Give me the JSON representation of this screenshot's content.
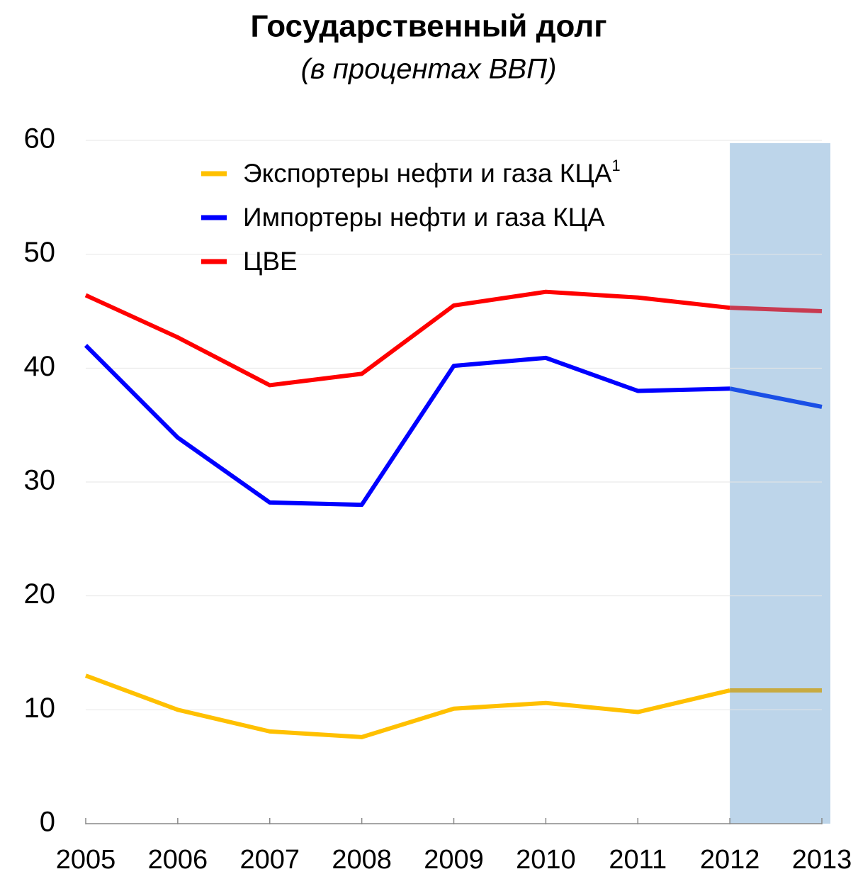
{
  "chart_data": {
    "type": "line",
    "title": "Государственный долг",
    "subtitle": "(в процентах ВВП)",
    "categories": [
      "2005",
      "2006",
      "2007",
      "2008",
      "2009",
      "2010",
      "2011",
      "2012",
      "2013"
    ],
    "series": [
      {
        "name": "Экспортеры нефти и газа КЦА",
        "name_superscript": "1",
        "color": "#ffc000",
        "forecast_color": "#c8aa40",
        "values": [
          13.0,
          10.0,
          8.1,
          7.6,
          10.1,
          10.6,
          9.8,
          11.7,
          11.7
        ]
      },
      {
        "name": "Импортеры нефти и газа КЦА",
        "color": "#0000ff",
        "forecast_color": "#1a4fe6",
        "values": [
          42.0,
          33.9,
          28.2,
          28.0,
          40.2,
          40.9,
          38.0,
          38.2,
          36.6
        ]
      },
      {
        "name": "ЦВЕ",
        "color": "#ff0000",
        "forecast_color": "#c83a50",
        "values": [
          46.4,
          42.7,
          38.5,
          39.5,
          45.5,
          46.7,
          46.2,
          45.3,
          45.0
        ]
      }
    ],
    "shaded_from": "2012",
    "shade_color": "#bdd5ea",
    "ylim": [
      0,
      60
    ],
    "yticks": [
      0,
      10,
      20,
      30,
      40,
      50,
      60
    ],
    "grid": true
  }
}
